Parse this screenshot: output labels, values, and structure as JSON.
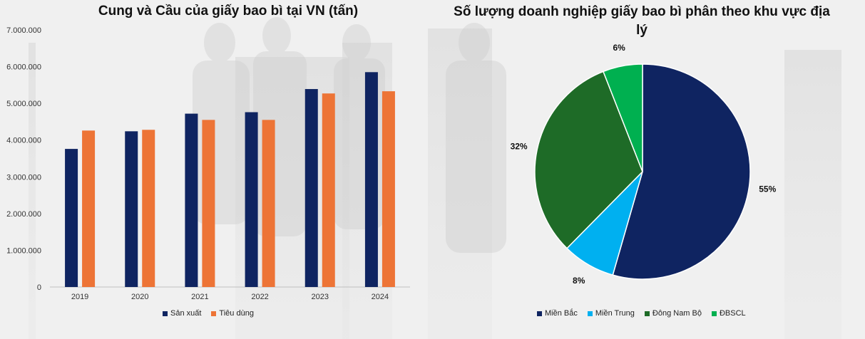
{
  "chart_data": [
    {
      "type": "bar",
      "title": "Cung và Cầu của giấy bao bì tại VN (tấn)",
      "categories": [
        "2019",
        "2020",
        "2021",
        "2022",
        "2023",
        "2024"
      ],
      "series": [
        {
          "name": "Sản xuất",
          "color": "#0f2461",
          "values": [
            3760000,
            4240000,
            4720000,
            4760000,
            5390000,
            5850000
          ]
        },
        {
          "name": "Tiêu dùng",
          "color": "#ed7436",
          "values": [
            4260000,
            4280000,
            4550000,
            4550000,
            5270000,
            5330000
          ]
        }
      ],
      "ylim": [
        0,
        7000000
      ],
      "yticks": [
        0,
        1000000,
        2000000,
        3000000,
        4000000,
        5000000,
        6000000,
        7000000
      ],
      "ytick_labels": [
        "0",
        "1.000.000",
        "2.000.000",
        "3.000.000",
        "4.000.000",
        "5.000.000",
        "6.000.000",
        "7.000.000"
      ],
      "legend_position": "bottom",
      "grid": false
    },
    {
      "type": "pie",
      "title": "Số lượng doanh nghiệp giấy bao bì phân theo khu vực địa lý",
      "slices": [
        {
          "label": "Miền Bắc",
          "value": 55,
          "display": "55%",
          "color": "#0f2461"
        },
        {
          "label": "Miền Trung",
          "value": 8,
          "display": "8%",
          "color": "#00b0f0"
        },
        {
          "label": "Đông Nam Bộ",
          "value": 32,
          "display": "32%",
          "color": "#1e6b27"
        },
        {
          "label": "ĐBSCL",
          "value": 6,
          "display": "6%",
          "color": "#00b050"
        }
      ],
      "legend_position": "bottom"
    }
  ]
}
